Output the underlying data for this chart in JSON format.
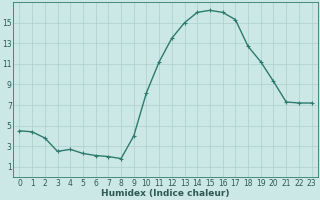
{
  "x": [
    0,
    1,
    2,
    3,
    4,
    5,
    6,
    7,
    8,
    9,
    10,
    11,
    12,
    13,
    14,
    15,
    16,
    17,
    18,
    19,
    20,
    21,
    22,
    23
  ],
  "y": [
    4.5,
    4.4,
    3.8,
    2.5,
    2.7,
    2.3,
    2.1,
    2.0,
    1.8,
    4.0,
    8.2,
    11.2,
    13.5,
    15.0,
    16.0,
    16.2,
    16.0,
    15.3,
    12.7,
    11.2,
    9.3,
    7.3,
    7.2,
    7.2
  ],
  "line_color": "#2d7a6e",
  "marker": "+",
  "bg_color": "#cce8e6",
  "grid_color": "#b0d4d2",
  "axis_color": "#2d7a6e",
  "xlabel": "Humidex (Indice chaleur)",
  "xlim": [
    -0.5,
    23.5
  ],
  "ylim": [
    0,
    17
  ],
  "yticks": [
    1,
    3,
    5,
    7,
    9,
    11,
    13,
    15
  ],
  "xticks": [
    0,
    1,
    2,
    3,
    4,
    5,
    6,
    7,
    8,
    9,
    10,
    11,
    12,
    13,
    14,
    15,
    16,
    17,
    18,
    19,
    20,
    21,
    22,
    23
  ],
  "font_color": "#2d5a50",
  "tick_fontsize": 5.5,
  "xlabel_fontsize": 6.5,
  "line_width": 1.0,
  "marker_size": 3.0,
  "marker_ew": 0.8
}
